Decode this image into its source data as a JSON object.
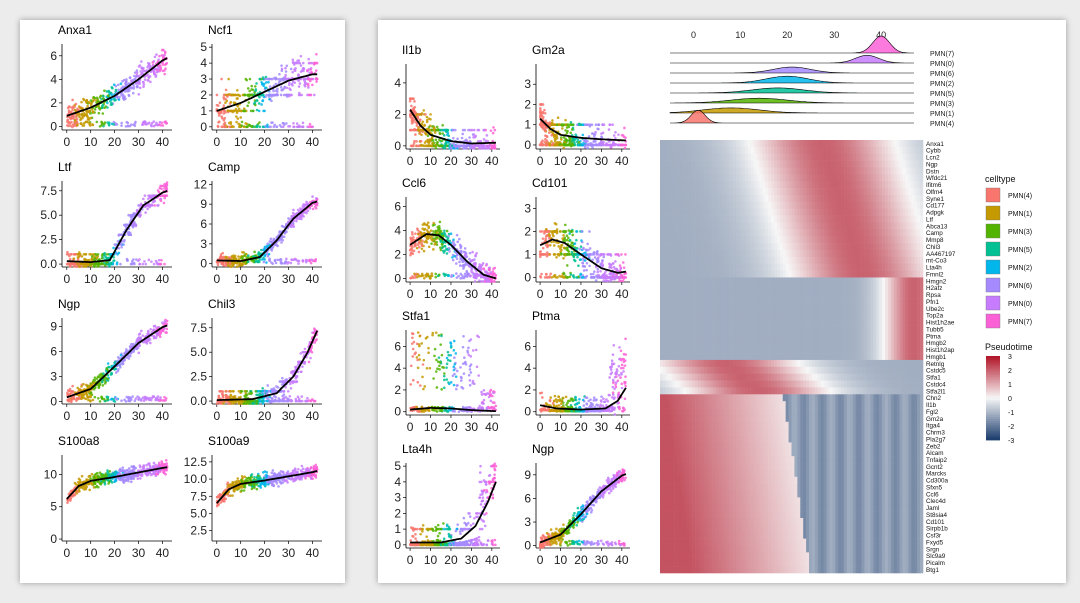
{
  "figure": {
    "pseudotime_ticks": [
      "0",
      "10",
      "20",
      "30",
      "40"
    ],
    "celltype_title": "celltype",
    "pseudotime_title": "Pseudotime"
  },
  "colors": {
    "PMN(4)": "#f8766d",
    "PMN(1)": "#c49a00",
    "PMN(3)": "#53b400",
    "PMN(5)": "#00c094",
    "PMN(2)": "#00b6eb",
    "PMN(6)": "#a58aff",
    "PMN(0)": "#c77cff",
    "PMN(7)": "#fb61d7",
    "curve": "#000000",
    "heat_low": "#1f3f6f",
    "heat_mid": "#f7f7f7",
    "heat_high": "#b2182b"
  },
  "chart_data": [
    {
      "type": "scatter",
      "panel": "left",
      "xlabel": "",
      "ylabel": "",
      "x_ticks": [
        0,
        10,
        20,
        30,
        40
      ],
      "xlim": [
        -2,
        44
      ],
      "subplots": [
        {
          "gene": "Anxa1",
          "ylim": [
            -0.3,
            7
          ],
          "y_ticks": [
            "0",
            "2",
            "4",
            "6"
          ],
          "y_tick_values": [
            0,
            2,
            4,
            6
          ],
          "curve": [
            [
              0,
              0.9
            ],
            [
              10,
              1.6
            ],
            [
              20,
              2.6
            ],
            [
              30,
              4.0
            ],
            [
              40,
              5.6
            ],
            [
              42,
              5.8
            ]
          ],
          "scatter": {
            "spread": 1.4,
            "zero_band": true,
            "discrete": false
          }
        },
        {
          "gene": "Ncf1",
          "ylim": [
            -0.2,
            5.2
          ],
          "y_ticks": [
            "0",
            "1",
            "2",
            "3",
            "4",
            "5"
          ],
          "y_tick_values": [
            0,
            1,
            2,
            3,
            4,
            5
          ],
          "curve": [
            [
              0,
              1.0
            ],
            [
              10,
              1.5
            ],
            [
              20,
              2.2
            ],
            [
              30,
              2.9
            ],
            [
              40,
              3.3
            ],
            [
              42,
              3.3
            ]
          ],
          "scatter": {
            "spread": 1.6,
            "zero_band": true,
            "discrete": true
          }
        },
        {
          "gene": "Ltf",
          "ylim": [
            -0.3,
            8.5
          ],
          "y_ticks": [
            "0.0",
            "2.5",
            "5.0",
            "7.5"
          ],
          "y_tick_values": [
            0,
            2.5,
            5,
            7.5
          ],
          "curve": [
            [
              0,
              0.3
            ],
            [
              10,
              0.2
            ],
            [
              18,
              0.4
            ],
            [
              25,
              3.5
            ],
            [
              32,
              6.0
            ],
            [
              40,
              7.3
            ],
            [
              42,
              7.5
            ]
          ],
          "scatter": {
            "spread": 1.2,
            "zero_band": true,
            "discrete": true
          }
        },
        {
          "gene": "Camp",
          "ylim": [
            -0.5,
            12.5
          ],
          "y_ticks": [
            "0",
            "3",
            "6",
            "9",
            "12"
          ],
          "y_tick_values": [
            0,
            3,
            6,
            9,
            12
          ],
          "curve": [
            [
              0,
              0.5
            ],
            [
              10,
              0.4
            ],
            [
              18,
              1.0
            ],
            [
              25,
              3.5
            ],
            [
              32,
              6.8
            ],
            [
              40,
              9.2
            ],
            [
              42,
              9.4
            ]
          ],
          "scatter": {
            "spread": 1.5,
            "zero_band": true,
            "discrete": false
          }
        },
        {
          "gene": "Ngp",
          "ylim": [
            -0.3,
            10
          ],
          "y_ticks": [
            "0",
            "3",
            "6",
            "9"
          ],
          "y_tick_values": [
            0,
            3,
            6,
            9
          ],
          "curve": [
            [
              0,
              0.5
            ],
            [
              10,
              1.5
            ],
            [
              20,
              4.2
            ],
            [
              30,
              7.0
            ],
            [
              40,
              8.9
            ],
            [
              42,
              9.1
            ]
          ],
          "scatter": {
            "spread": 1.3,
            "zero_band": true,
            "discrete": false
          }
        },
        {
          "gene": "Chil3",
          "ylim": [
            -0.3,
            8.5
          ],
          "y_ticks": [
            "0.0",
            "2.5",
            "5.0",
            "7.5"
          ],
          "y_tick_values": [
            0,
            2.5,
            5,
            7.5
          ],
          "curve": [
            [
              0,
              0.1
            ],
            [
              15,
              0.2
            ],
            [
              25,
              0.8
            ],
            [
              32,
              2.5
            ],
            [
              38,
              5.0
            ],
            [
              42,
              7.2
            ]
          ],
          "scatter": {
            "spread": 1.4,
            "zero_band": true,
            "discrete": true
          }
        },
        {
          "gene": "S100a8",
          "ylim": [
            -0.3,
            13
          ],
          "y_ticks": [
            "0",
            "5",
            "10"
          ],
          "y_tick_values": [
            0,
            5,
            10
          ],
          "curve": [
            [
              0,
              6.2
            ],
            [
              5,
              8.2
            ],
            [
              10,
              9.0
            ],
            [
              20,
              9.6
            ],
            [
              30,
              10.3
            ],
            [
              40,
              11.0
            ],
            [
              42,
              11.1
            ]
          ],
          "scatter": {
            "spread": 1.5,
            "zero_band": false,
            "discrete": false
          }
        },
        {
          "gene": "S100a9",
          "ylim": [
            1,
            13.5
          ],
          "y_ticks": [
            "2.5",
            "5.0",
            "7.5",
            "10.0",
            "12.5"
          ],
          "y_tick_values": [
            2.5,
            5,
            7.5,
            10,
            12.5
          ],
          "curve": [
            [
              0,
              6.5
            ],
            [
              5,
              8.5
            ],
            [
              10,
              9.3
            ],
            [
              20,
              9.8
            ],
            [
              30,
              10.4
            ],
            [
              40,
              11.0
            ],
            [
              42,
              11.2
            ]
          ],
          "scatter": {
            "spread": 1.4,
            "zero_band": false,
            "discrete": false
          }
        }
      ]
    },
    {
      "type": "scatter",
      "panel": "right-genes",
      "xlabel": "",
      "ylabel": "",
      "x_ticks": [
        0,
        10,
        20,
        30,
        40
      ],
      "xlim": [
        -2,
        44
      ],
      "subplots": [
        {
          "gene": "Il1b",
          "ylim": [
            -0.2,
            5.2
          ],
          "y_ticks": [
            "0",
            "2",
            "4"
          ],
          "y_tick_values": [
            0,
            2,
            4
          ],
          "curve": [
            [
              0,
              2.3
            ],
            [
              5,
              1.3
            ],
            [
              10,
              0.7
            ],
            [
              20,
              0.3
            ],
            [
              30,
              0.15
            ],
            [
              42,
              0.2
            ]
          ],
          "scatter": {
            "spread": 1.3,
            "zero_band": true,
            "discrete": true,
            "decay": true
          }
        },
        {
          "gene": "Gm2a",
          "ylim": [
            -0.2,
            4
          ],
          "y_ticks": [
            "0",
            "1",
            "2",
            "3"
          ],
          "y_tick_values": [
            0,
            1,
            2,
            3
          ],
          "curve": [
            [
              0,
              1.3
            ],
            [
              5,
              0.8
            ],
            [
              10,
              0.5
            ],
            [
              20,
              0.35
            ],
            [
              30,
              0.28
            ],
            [
              42,
              0.22
            ]
          ],
          "scatter": {
            "spread": 1.0,
            "zero_band": true,
            "discrete": true,
            "decay": true
          }
        },
        {
          "gene": "Ccl6",
          "ylim": [
            -0.3,
            6.8
          ],
          "y_ticks": [
            "0",
            "2",
            "4",
            "6"
          ],
          "y_tick_values": [
            0,
            2,
            4,
            6
          ],
          "curve": [
            [
              0,
              2.8
            ],
            [
              8,
              3.7
            ],
            [
              14,
              3.6
            ],
            [
              20,
              2.8
            ],
            [
              28,
              1.4
            ],
            [
              36,
              0.3
            ],
            [
              42,
              0.0
            ]
          ],
          "scatter": {
            "spread": 1.5,
            "zero_band": true,
            "discrete": false
          }
        },
        {
          "gene": "Cd101",
          "ylim": [
            -0.2,
            3.5
          ],
          "y_ticks": [
            "0",
            "1",
            "2",
            "3"
          ],
          "y_tick_values": [
            0,
            1,
            2,
            3
          ],
          "curve": [
            [
              0,
              1.4
            ],
            [
              6,
              1.65
            ],
            [
              12,
              1.5
            ],
            [
              20,
              1.0
            ],
            [
              30,
              0.4
            ],
            [
              38,
              0.2
            ],
            [
              42,
              0.25
            ]
          ],
          "scatter": {
            "spread": 1.0,
            "zero_band": true,
            "discrete": true
          }
        },
        {
          "gene": "Stfa1",
          "ylim": [
            -0.3,
            7.5
          ],
          "y_ticks": [
            "0",
            "2",
            "4",
            "6"
          ],
          "y_tick_values": [
            0,
            2,
            4,
            6
          ],
          "curve": [
            [
              0,
              0.2
            ],
            [
              10,
              0.35
            ],
            [
              20,
              0.3
            ],
            [
              30,
              0.15
            ],
            [
              42,
              0.05
            ]
          ],
          "scatter": {
            "spread": 2.5,
            "zero_band": true,
            "discrete": false,
            "sparse": true
          }
        },
        {
          "gene": "Ptma",
          "ylim": [
            -0.3,
            7.5
          ],
          "y_ticks": [
            "0",
            "2",
            "4",
            "6"
          ],
          "y_tick_values": [
            0,
            2,
            4,
            6
          ],
          "curve": [
            [
              0,
              0.6
            ],
            [
              8,
              0.3
            ],
            [
              20,
              0.2
            ],
            [
              32,
              0.3
            ],
            [
              38,
              1.0
            ],
            [
              42,
              2.2
            ]
          ],
          "scatter": {
            "spread": 1.2,
            "zero_band": true,
            "discrete": false,
            "late": true
          }
        },
        {
          "gene": "Lta4h",
          "ylim": [
            -0.2,
            5.2
          ],
          "y_ticks": [
            "0",
            "1",
            "2",
            "3",
            "4",
            "5"
          ],
          "y_tick_values": [
            0,
            1,
            2,
            3,
            4,
            5
          ],
          "curve": [
            [
              0,
              0.15
            ],
            [
              15,
              0.15
            ],
            [
              25,
              0.4
            ],
            [
              32,
              1.2
            ],
            [
              38,
              2.7
            ],
            [
              42,
              4.0
            ]
          ],
          "scatter": {
            "spread": 1.0,
            "zero_band": true,
            "discrete": true,
            "late": true
          }
        },
        {
          "gene": "Ngp",
          "ylim": [
            -0.3,
            10.5
          ],
          "y_ticks": [
            "0",
            "3",
            "6",
            "9"
          ],
          "y_tick_values": [
            0,
            3,
            6,
            9
          ],
          "curve": [
            [
              0,
              0.4
            ],
            [
              10,
              1.4
            ],
            [
              20,
              4.0
            ],
            [
              30,
              6.9
            ],
            [
              40,
              8.9
            ],
            [
              42,
              9.1
            ]
          ],
          "scatter": {
            "spread": 1.3,
            "zero_band": true,
            "discrete": false
          }
        }
      ]
    },
    {
      "type": "area",
      "panel": "ridge",
      "title": "",
      "x_ticks": [
        0,
        10,
        20,
        30,
        40
      ],
      "xlim": [
        -5,
        47
      ],
      "ridges": [
        {
          "label": "PMN(7)",
          "center": 40,
          "width": 1.8,
          "peak": 1.0
        },
        {
          "label": "PMN(0)",
          "center": 37,
          "width": 2.5,
          "peak": 0.45
        },
        {
          "label": "PMN(6)",
          "center": 21,
          "width": 4.0,
          "peak": 0.35
        },
        {
          "label": "PMN(2)",
          "center": 20,
          "width": 4.5,
          "peak": 0.4
        },
        {
          "label": "PMN(5)",
          "center": 18,
          "width": 5.5,
          "peak": 0.3
        },
        {
          "label": "PMN(3)",
          "center": 14,
          "width": 6.0,
          "peak": 0.28
        },
        {
          "label": "PMN(1)",
          "center": 8,
          "width": 6.0,
          "peak": 0.3
        },
        {
          "label": "PMN(4)",
          "center": 1,
          "width": 1.5,
          "peak": 0.75
        }
      ]
    },
    {
      "type": "heatmap",
      "panel": "heatmap",
      "color_range": [
        -3,
        3
      ],
      "legend_ticks": [
        3,
        2,
        1,
        0,
        -1,
        -2,
        -3
      ],
      "celltype_legend": [
        "PMN(4)",
        "PMN(1)",
        "PMN(3)",
        "PMN(5)",
        "PMN(2)",
        "PMN(6)",
        "PMN(0)",
        "PMN(7)"
      ],
      "genes": [
        "Anxa1",
        "Cybb",
        "Lcn2",
        "Ngp",
        "Dstn",
        "Wfdc21",
        "Ifitm6",
        "Olfm4",
        "Syne1",
        "Cd177",
        "Adpgk",
        "Ltf",
        "Abca13",
        "Camp",
        "Mmp8",
        "Chil3",
        "AA467197",
        "mt-Co3",
        "Lta4h",
        "Fmnl2",
        "Hmgn2",
        "H2afz",
        "Rpsa",
        "Pfn1",
        "Ube2c",
        "Top2a",
        "Hist1h2ae",
        "Tubb5",
        "Ptma",
        "Hmgb2",
        "Hist1h2ap",
        "Hmgb1",
        "Retnlg",
        "Cstdc5",
        "Stfa1",
        "Cstdc4",
        "Stfa2l1",
        "Chn2",
        "Il1b",
        "Fgl2",
        "Gm2a",
        "Itga4",
        "Chrm3",
        "Pla2g7",
        "Zeb2",
        "Alcam",
        "Tnfaip2",
        "Gcnt2",
        "Marcks",
        "Cd300a",
        "Sfxn5",
        "Ccl6",
        "Clec4d",
        "Jaml",
        "St8sia4",
        "Cd101",
        "Sirpb1b",
        "Csf3r",
        "Fxyd5",
        "Srgn",
        "Slc9a9",
        "Picalm",
        "Btg1"
      ]
    }
  ]
}
